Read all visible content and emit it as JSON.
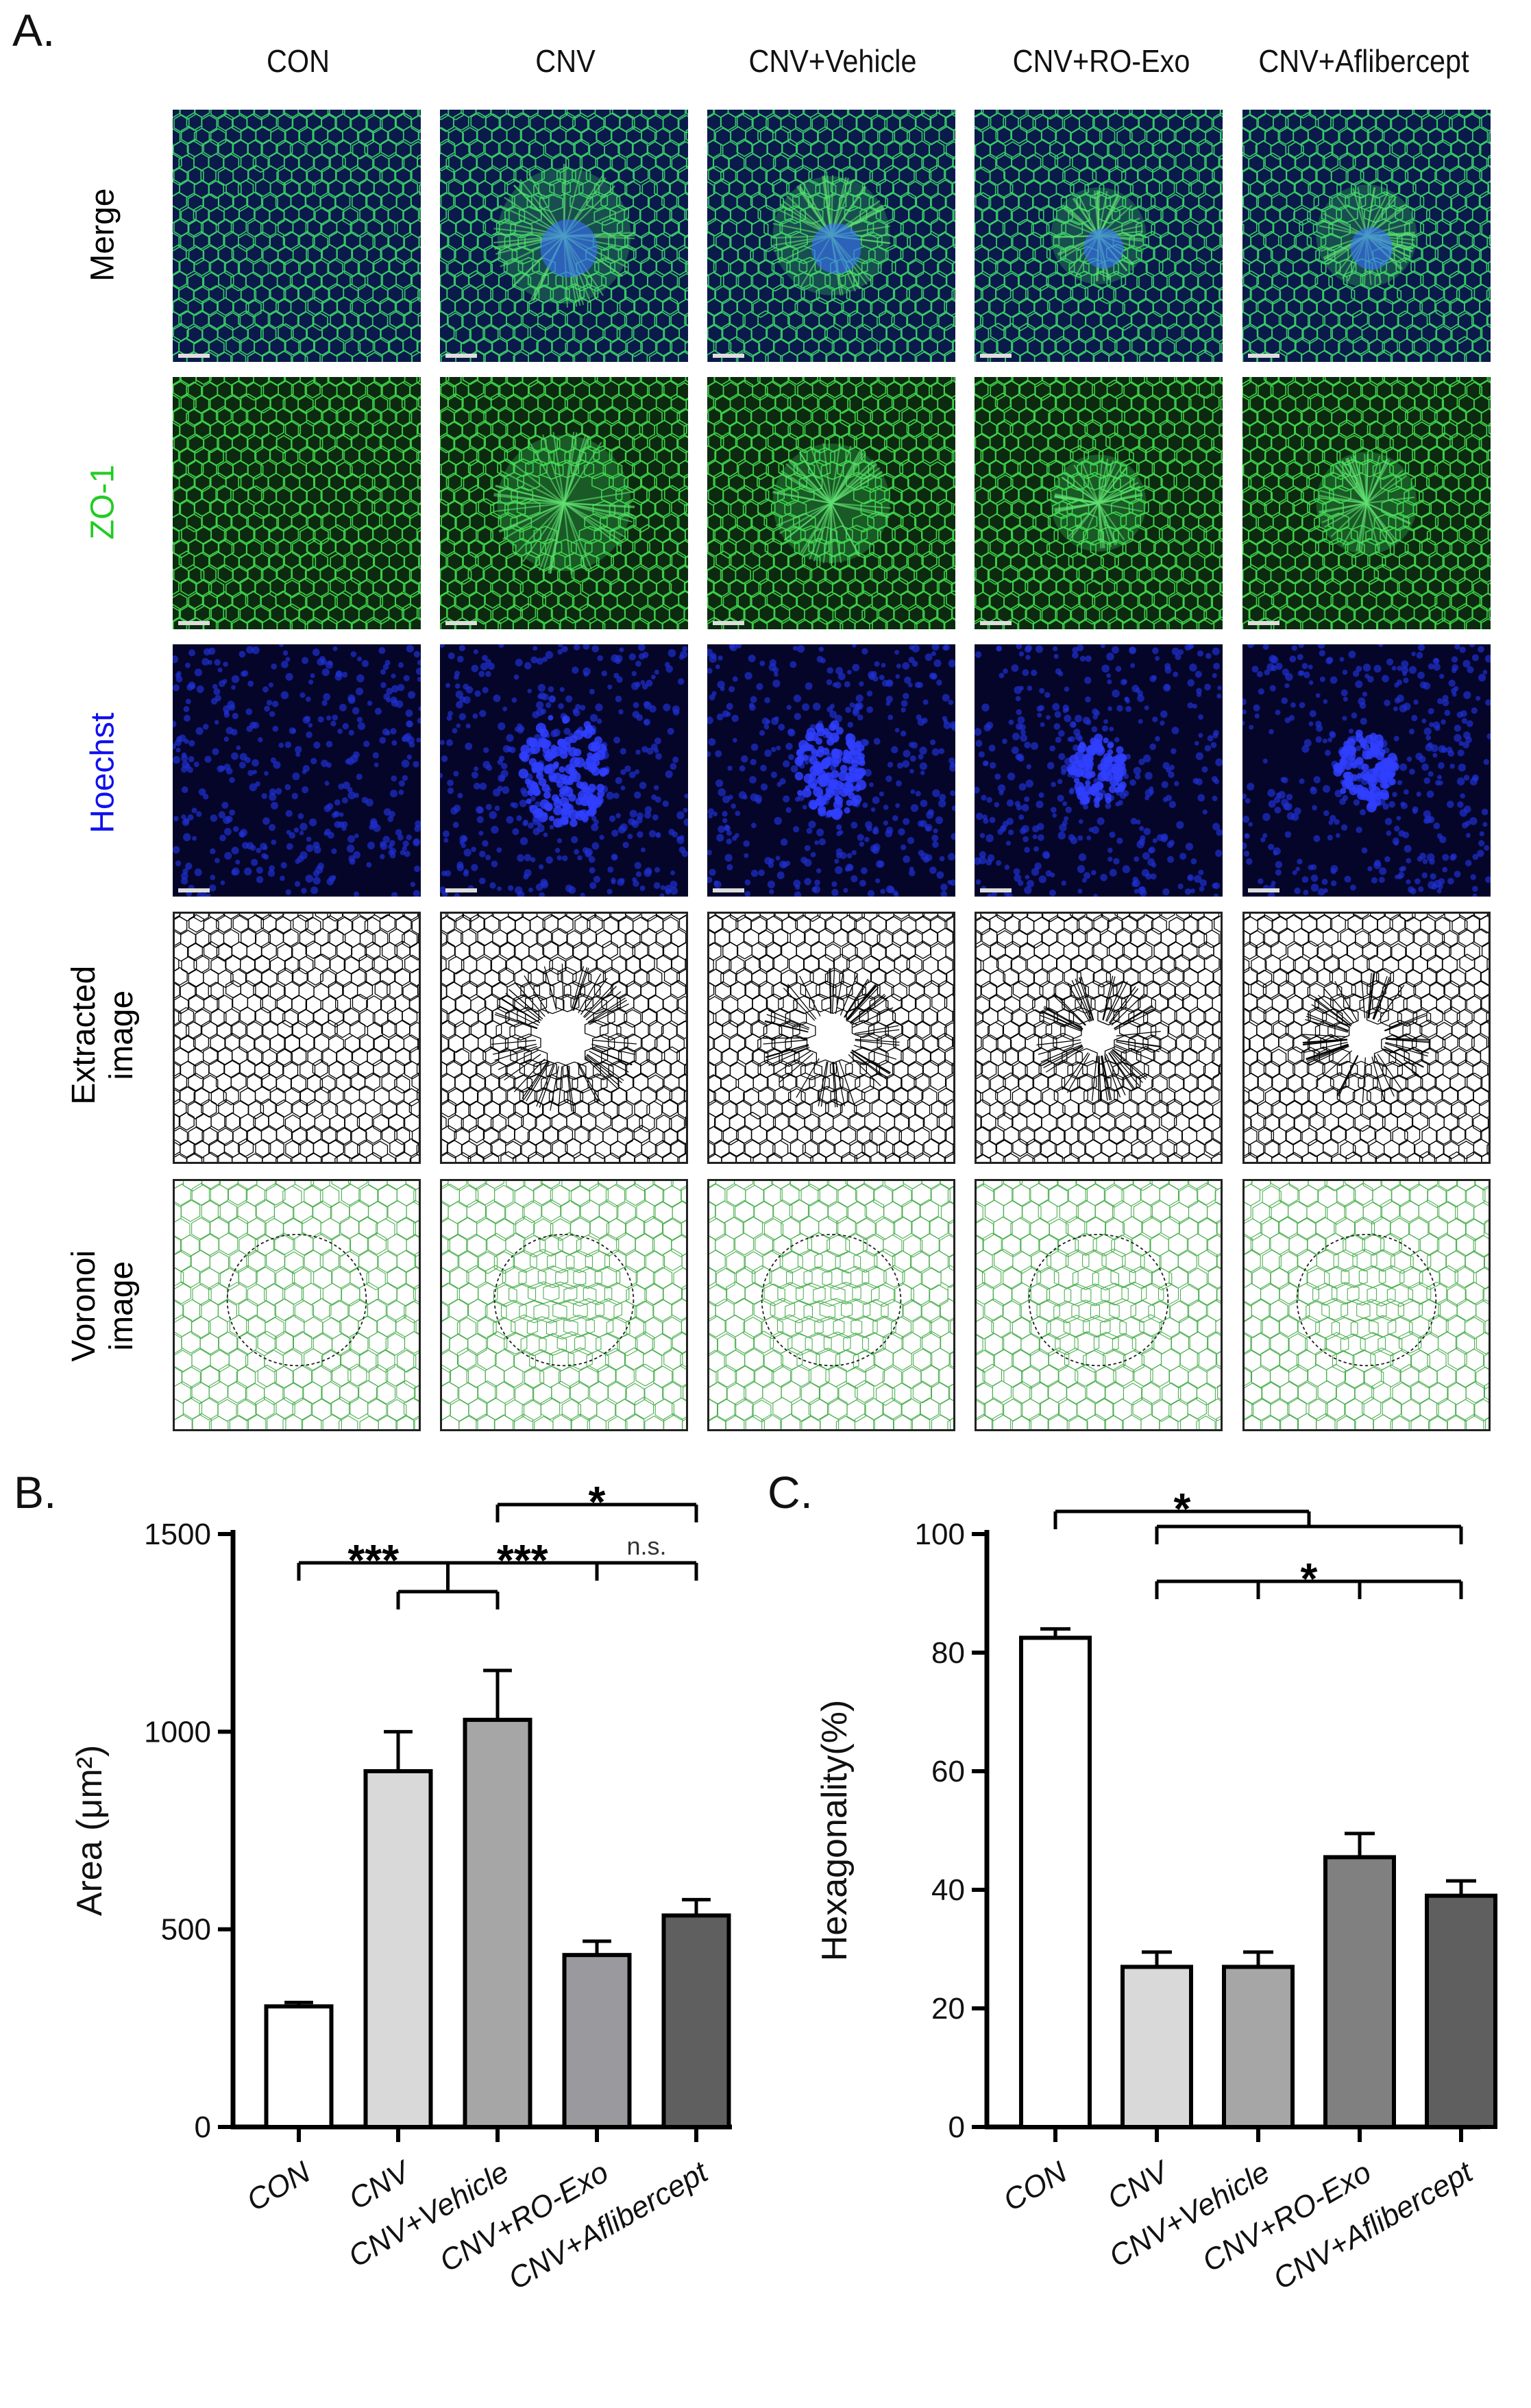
{
  "panel_a": {
    "letter": "A.",
    "columns": [
      "CON",
      "CNV",
      "CNV+Vehicle",
      "CNV+RO-Exo",
      "CNV+Aflibercept"
    ],
    "rows": [
      {
        "label": "Merge",
        "color": "#000000"
      },
      {
        "label": "ZO-1",
        "color": "#22cc22"
      },
      {
        "label": "Hoechst",
        "color": "#1010ee"
      },
      {
        "label": "Extracted\nimage",
        "color": "#000000"
      },
      {
        "label": "Voronoi\nimage",
        "color": "#000000"
      }
    ]
  },
  "chart_data": [
    {
      "panel": "B.",
      "type": "bar",
      "categories": [
        "CON",
        "CNV",
        "CNV+Vehicle",
        "CNV+RO-Exo",
        "CNV+Aflibercept"
      ],
      "values": [
        305,
        900,
        1030,
        435,
        535
      ],
      "errors": [
        10,
        100,
        125,
        35,
        40
      ],
      "bar_colors": [
        "#ffffff",
        "#d9d9d9",
        "#a6a6a6",
        "#9a9a9e",
        "#5f5f5f"
      ],
      "ylabel": "Area (μm²)",
      "ylim": [
        0,
        1500
      ],
      "yticks": [
        0,
        500,
        1000,
        1500
      ],
      "significance": [
        {
          "label": "***",
          "left": [
            0
          ],
          "right": [
            1,
            2
          ]
        },
        {
          "label": "***",
          "left": [
            1,
            2
          ],
          "right": [
            3
          ]
        },
        {
          "label": "n.s.",
          "left": [
            3
          ],
          "right": [
            4
          ]
        },
        {
          "label": "*",
          "left": [
            2
          ],
          "right": [
            4
          ]
        }
      ]
    },
    {
      "panel": "C.",
      "type": "bar",
      "categories": [
        "CON",
        "CNV",
        "CNV+Vehicle",
        "CNV+RO-Exo",
        "CNV+Aflibercept"
      ],
      "values": [
        82.5,
        27,
        27,
        45.5,
        39
      ],
      "errors": [
        1.5,
        2.5,
        2.5,
        4,
        2.5
      ],
      "bar_colors": [
        "#ffffff",
        "#d9d9d9",
        "#a6a6a6",
        "#808080",
        "#5f5f5f"
      ],
      "ylabel": "Hexagonality(%)",
      "ylim": [
        0,
        100
      ],
      "yticks": [
        0,
        20,
        40,
        60,
        80,
        100
      ],
      "significance": [
        {
          "label": "*",
          "left": [
            0
          ],
          "right": [
            1,
            4
          ]
        },
        {
          "label": "*",
          "left": [
            1,
            2
          ],
          "right": [
            3,
            4
          ]
        }
      ]
    }
  ]
}
